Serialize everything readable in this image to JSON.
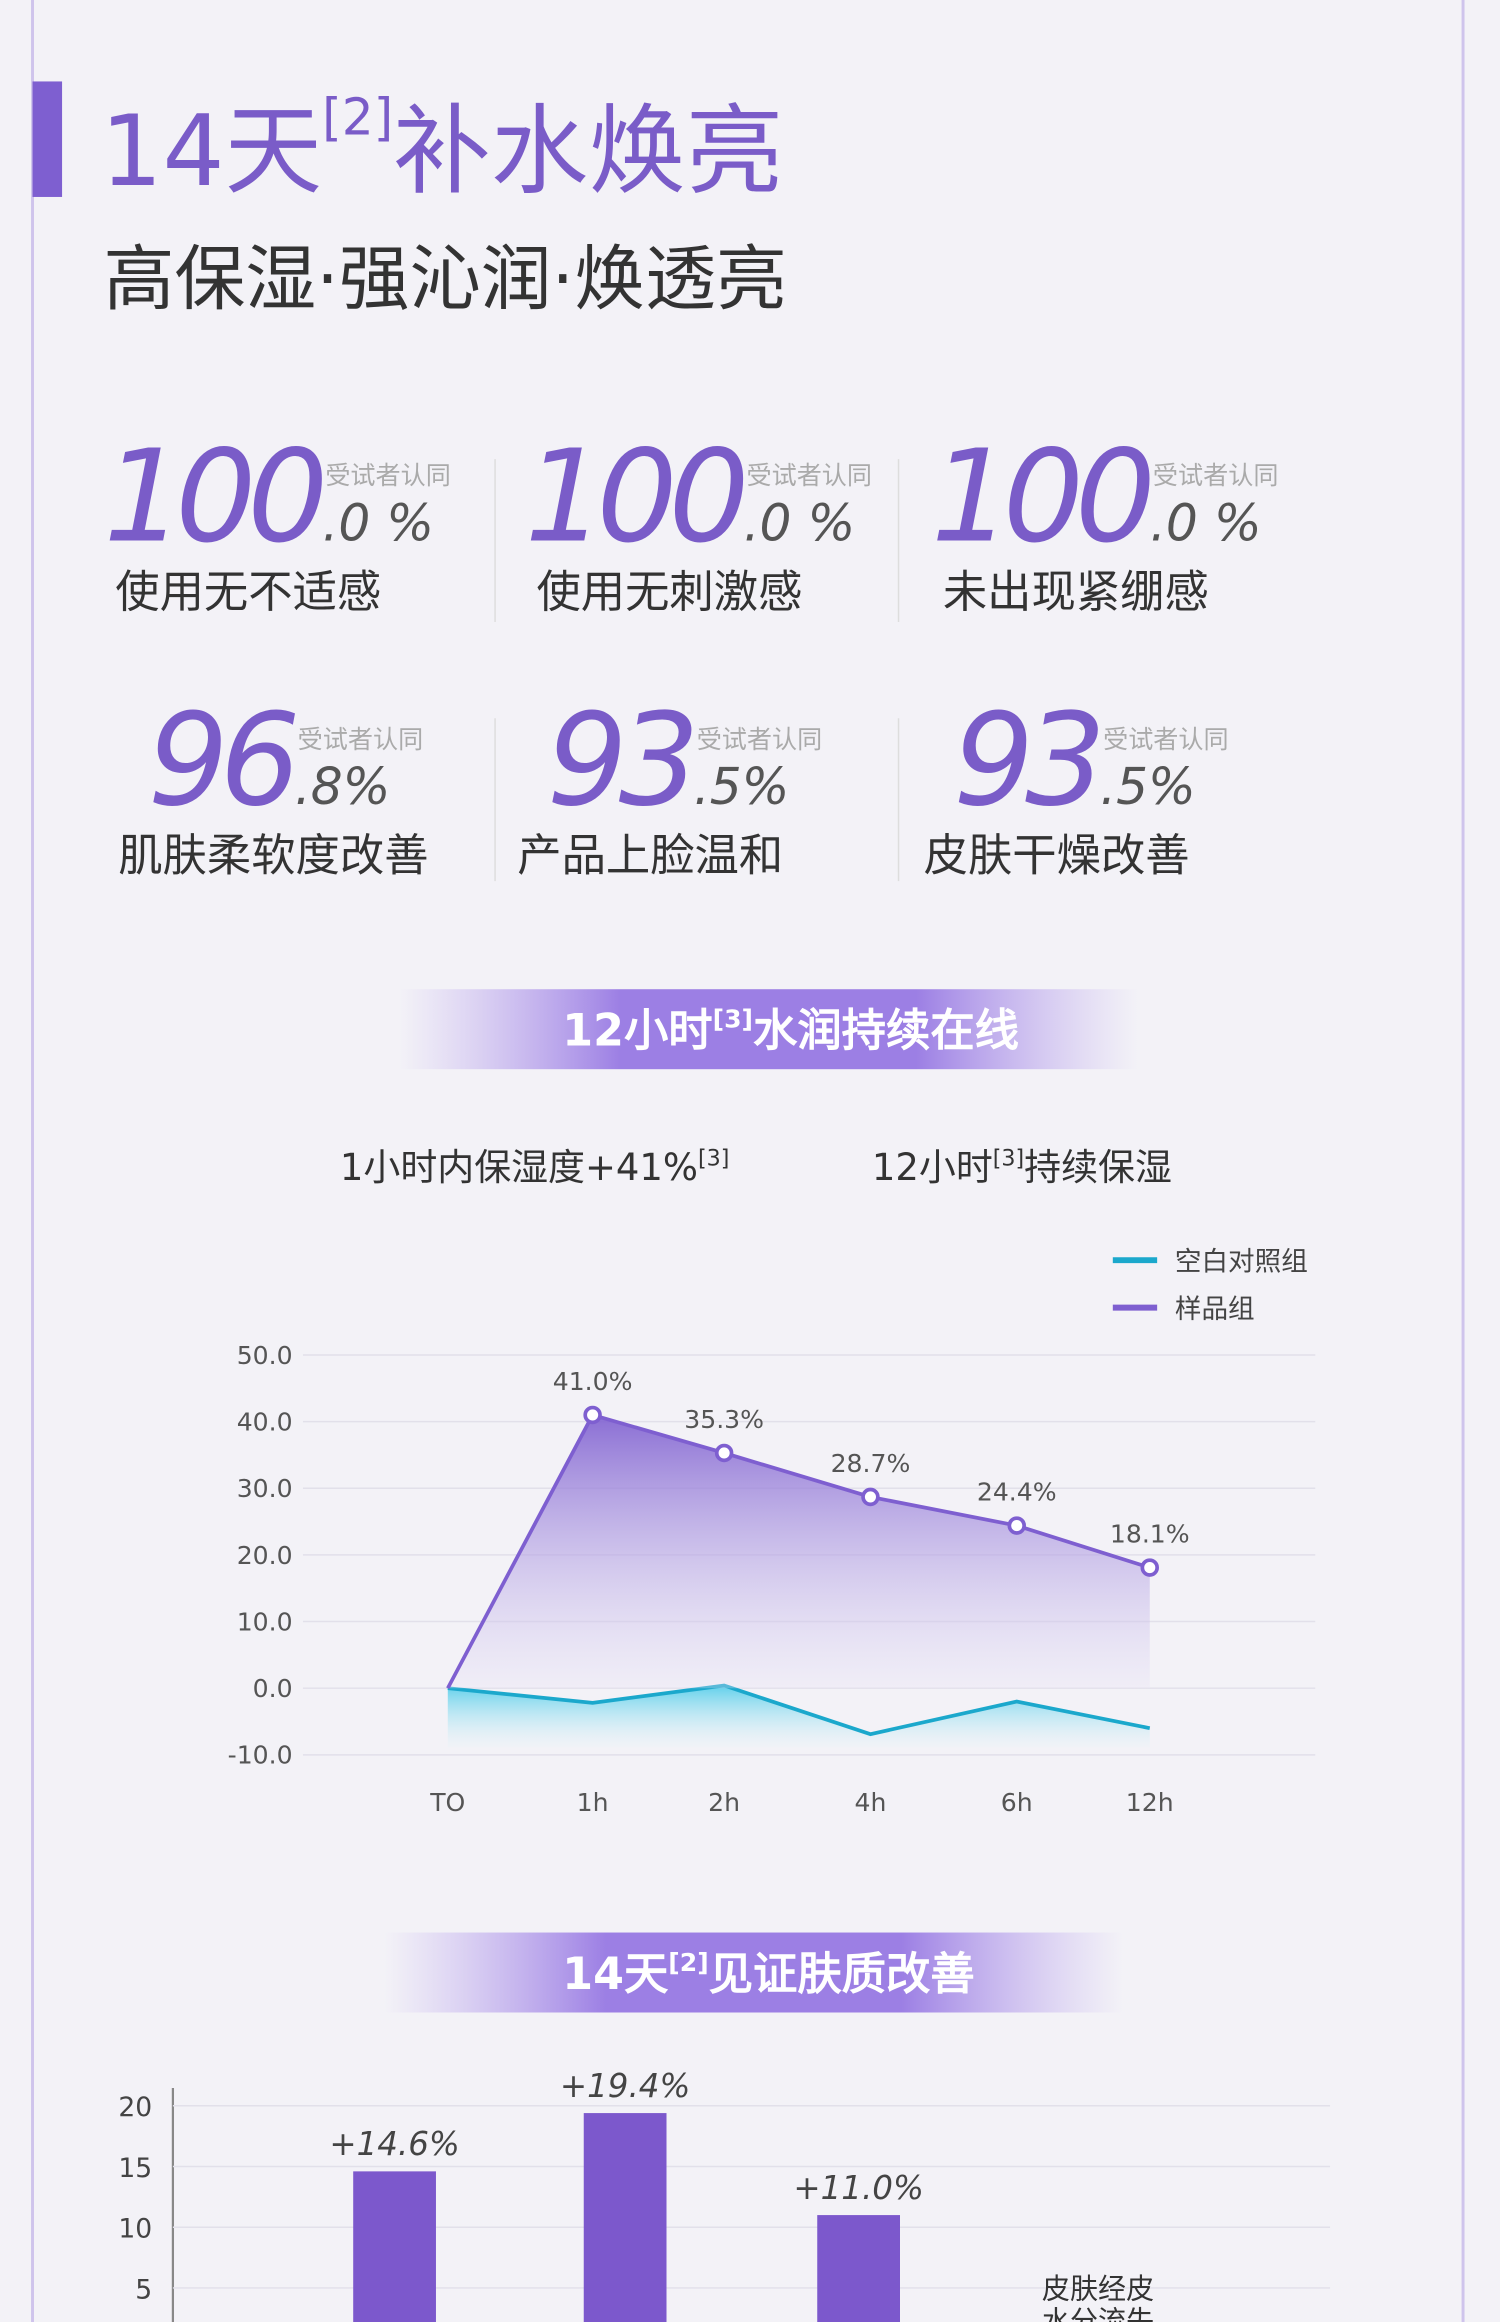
{
  "header": {
    "title": {
      "main": "14天",
      "note": "[2]",
      "rest": "补水焕亮"
    },
    "subtitle": "高保湿·强沁润·焕透亮"
  },
  "stats": [
    {
      "number": "100",
      "decimal": ".0 %",
      "note": "受试者认同",
      "label": "使用无不适感"
    },
    {
      "number": "100",
      "decimal": ".0 %",
      "note": "受试者认同",
      "label": "使用无刺激感"
    },
    {
      "number": "100",
      "decimal": ".0 %",
      "note": "受试者认同",
      "label": "未出现紧绷感"
    },
    {
      "number": "96",
      "decimal": ".8%",
      "note": "受试者认同",
      "label": "肌肤柔软度改善"
    },
    {
      "number": "93",
      "decimal": ".5%",
      "note": "受试者认同",
      "label": "产品上脸温和"
    },
    {
      "number": "93",
      "decimal": ".5%",
      "note": "受试者认同",
      "label": "皮肤干燥改善"
    }
  ],
  "banner1": {
    "main": "12小时",
    "note": "[3]",
    "rest": "水润持续在线"
  },
  "claims": [
    {
      "main": "1小时内保湿度+41%",
      "note": "[3]",
      "rest": ""
    },
    {
      "main": "12小时",
      "note": "[3]",
      "rest": "持续保湿"
    }
  ],
  "banner2": {
    "main": "14天",
    "note": "[2]",
    "rest": "见证肤质改善"
  },
  "chart_data": [
    {
      "type": "line",
      "categories": [
        "TO",
        "1h",
        "2h",
        "4h",
        "6h",
        "12h"
      ],
      "series": [
        {
          "name": "空白对照组",
          "color": "#1ba8cc",
          "values": [
            0,
            -2.2,
            0.4,
            -6.9,
            -2.0,
            -6.0
          ]
        },
        {
          "name": "样品组",
          "color": "#7e5fd0",
          "values": [
            0,
            41.0,
            35.3,
            28.7,
            24.4,
            18.1
          ],
          "value_labels": [
            null,
            "41.0%",
            "35.3%",
            "28.7%",
            "24.4%",
            "18.1%"
          ]
        }
      ],
      "ylim": [
        -10,
        50
      ],
      "yticks": [
        {
          "value": -10,
          "label": "-10.0"
        },
        {
          "value": 0,
          "label": "0.0"
        },
        {
          "value": 10,
          "label": "10.0"
        },
        {
          "value": 20,
          "label": "20.0"
        },
        {
          "value": 30,
          "label": "30.0"
        },
        {
          "value": 40,
          "label": "40.0"
        },
        {
          "value": 50,
          "label": "50.0"
        }
      ],
      "grid": true,
      "legend": "top-right"
    },
    {
      "type": "bar",
      "categories": [
        null,
        null,
        null,
        "皮肤经皮水分流失"
      ],
      "values": [
        14.6,
        19.4,
        11.0,
        null
      ],
      "value_labels": [
        "+14.6%",
        "+19.4%",
        "+11.0%",
        null
      ],
      "color": "#7c58cc",
      "ylim": [
        0,
        20
      ],
      "yticks": [
        5,
        10,
        15,
        20
      ],
      "grid": true
    }
  ]
}
